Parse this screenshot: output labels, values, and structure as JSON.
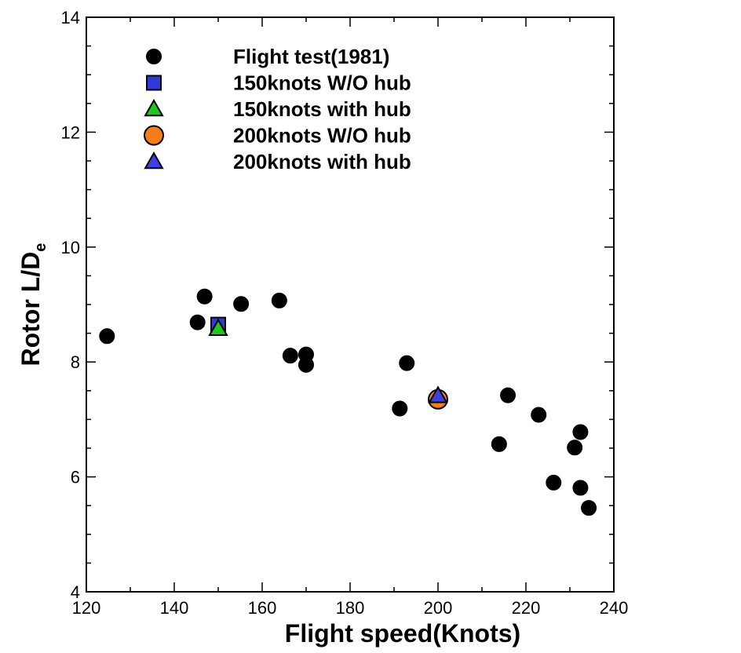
{
  "chart_data": {
    "type": "scatter",
    "xlabel": "Flight speed(Knots)",
    "ylabel_main": "Rotor L/D",
    "ylabel_sub": "e",
    "xlim": [
      120,
      240
    ],
    "ylim": [
      4,
      14
    ],
    "xticks": [
      120,
      140,
      160,
      180,
      200,
      220,
      240
    ],
    "yticks": [
      4,
      6,
      8,
      10,
      12,
      14
    ],
    "xtick_labels": [
      "120",
      "140",
      "160",
      "180",
      "200",
      "220",
      "240"
    ],
    "ytick_labels": [
      "4",
      "6",
      "8",
      "10",
      "12",
      "14"
    ],
    "grid": false,
    "legend_position": "top-left",
    "series": [
      {
        "name": "Flight test(1981)",
        "marker": "circle",
        "color": "#000000",
        "points": [
          {
            "x": 124.7,
            "y": 8.45
          },
          {
            "x": 145.3,
            "y": 8.69
          },
          {
            "x": 146.9,
            "y": 9.14
          },
          {
            "x": 155.2,
            "y": 9.01
          },
          {
            "x": 163.9,
            "y": 9.07
          },
          {
            "x": 166.4,
            "y": 8.11
          },
          {
            "x": 170.0,
            "y": 8.13
          },
          {
            "x": 170.0,
            "y": 7.95
          },
          {
            "x": 191.3,
            "y": 7.19
          },
          {
            "x": 192.9,
            "y": 7.98
          },
          {
            "x": 213.9,
            "y": 6.57
          },
          {
            "x": 215.9,
            "y": 7.42
          },
          {
            "x": 222.9,
            "y": 7.08
          },
          {
            "x": 226.3,
            "y": 5.9
          },
          {
            "x": 231.1,
            "y": 6.51
          },
          {
            "x": 232.4,
            "y": 6.78
          },
          {
            "x": 232.4,
            "y": 5.81
          },
          {
            "x": 234.3,
            "y": 5.46
          }
        ]
      },
      {
        "name": "150knots W/O hub",
        "marker": "square",
        "color": "#2e3ad8",
        "points": [
          {
            "x": 150,
            "y": 8.65
          }
        ]
      },
      {
        "name": "150knots with hub",
        "marker": "triangle",
        "color": "#1ec81e",
        "points": [
          {
            "x": 150,
            "y": 8.58
          }
        ]
      },
      {
        "name": "200knots W/O hub",
        "marker": "circle",
        "color": "#f57f16",
        "points": [
          {
            "x": 200,
            "y": 7.35
          }
        ]
      },
      {
        "name": "200knots with hub",
        "marker": "triangle",
        "color": "#3f3fe6",
        "points": [
          {
            "x": 200,
            "y": 7.41
          }
        ]
      }
    ]
  }
}
